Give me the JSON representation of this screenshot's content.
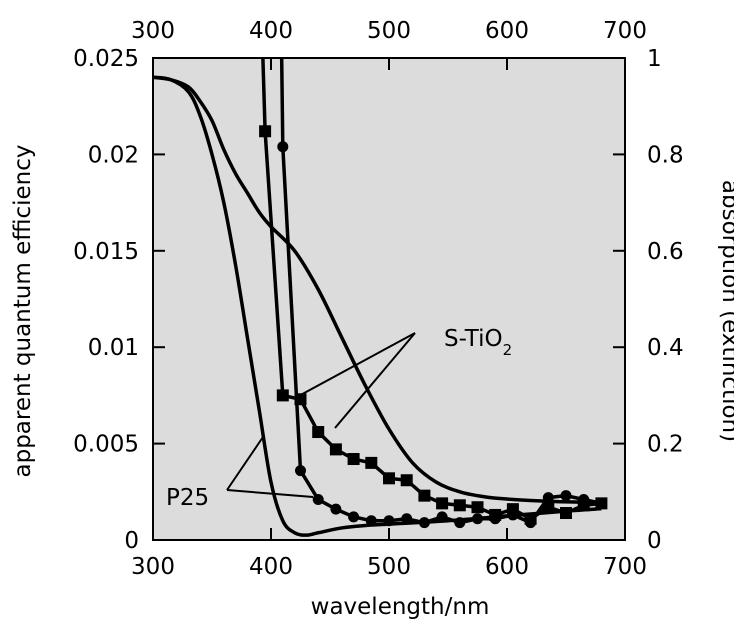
{
  "chart_data": {
    "type": "line",
    "title": "",
    "xlabel": "wavelength/nm",
    "ylabel": "apparent quantum efficiency",
    "y2label": "absorption (extinction)",
    "xlim": [
      300,
      700
    ],
    "ylim": [
      0,
      0.025
    ],
    "y2lim": [
      0,
      1
    ],
    "x_ticks": [
      "300",
      "400",
      "500",
      "600",
      "700"
    ],
    "x_ticks_top": [
      "300",
      "400",
      "500",
      "600",
      "700"
    ],
    "y_ticks": [
      "0",
      "0.005",
      "0.01",
      "0.015",
      "0.02",
      "0.025"
    ],
    "y2_ticks": [
      "0",
      "0.2",
      "0.4",
      "0.6",
      "0.8",
      "1"
    ],
    "background": "#dcdcdc",
    "line_color": "#000000",
    "grid": false,
    "legend": "none",
    "annotations": {
      "s_tio2": {
        "prefix": "S-TiO",
        "subscript": "2"
      },
      "p25": "P25"
    },
    "series": [
      {
        "axis": "left",
        "marker": "square",
        "x": [
          395,
          410,
          425,
          440,
          455,
          470,
          485,
          500,
          515,
          530,
          545,
          560,
          575,
          590,
          605,
          620,
          635,
          650,
          665,
          680
        ],
        "y": [
          0.0212,
          0.0075,
          0.0073,
          0.0056,
          0.0047,
          0.0042,
          0.004,
          0.0032,
          0.0031,
          0.0023,
          0.0019,
          0.0018,
          0.0017,
          0.0013,
          0.0016,
          0.0011,
          0.0017,
          0.0014,
          0.0018,
          0.0019
        ]
      },
      {
        "axis": "left",
        "marker": "circle",
        "x": [
          410,
          425,
          440,
          455,
          470,
          485,
          500,
          515,
          530,
          545,
          560,
          575,
          590,
          605,
          620,
          635,
          650,
          665,
          680
        ],
        "y": [
          0.0204,
          0.0036,
          0.0021,
          0.0016,
          0.0012,
          0.001,
          0.001,
          0.0011,
          0.0009,
          0.0012,
          0.0009,
          0.0011,
          0.0011,
          0.0013,
          0.0009,
          0.0022,
          0.0023,
          0.0021,
          0.0019
        ]
      },
      {
        "axis": "right",
        "marker": "none",
        "x": [
          300,
          315,
          330,
          340,
          350,
          360,
          370,
          380,
          390,
          400,
          410,
          420,
          430,
          440,
          460,
          480,
          500,
          550,
          600,
          650,
          680
        ],
        "y": [
          0.96,
          0.955,
          0.93,
          0.88,
          0.8,
          0.7,
          0.57,
          0.42,
          0.27,
          0.12,
          0.04,
          0.015,
          0.01,
          0.015,
          0.025,
          0.03,
          0.033,
          0.04,
          0.05,
          0.06,
          0.065
        ]
      },
      {
        "axis": "right",
        "marker": "none",
        "x": [
          300,
          315,
          330,
          340,
          350,
          360,
          370,
          380,
          390,
          400,
          420,
          440,
          460,
          480,
          500,
          520,
          540,
          560,
          580,
          600,
          640,
          680
        ],
        "y": [
          0.96,
          0.955,
          0.94,
          0.91,
          0.87,
          0.81,
          0.76,
          0.72,
          0.68,
          0.65,
          0.6,
          0.52,
          0.42,
          0.32,
          0.23,
          0.16,
          0.12,
          0.1,
          0.09,
          0.085,
          0.08,
          0.078
        ]
      }
    ]
  }
}
